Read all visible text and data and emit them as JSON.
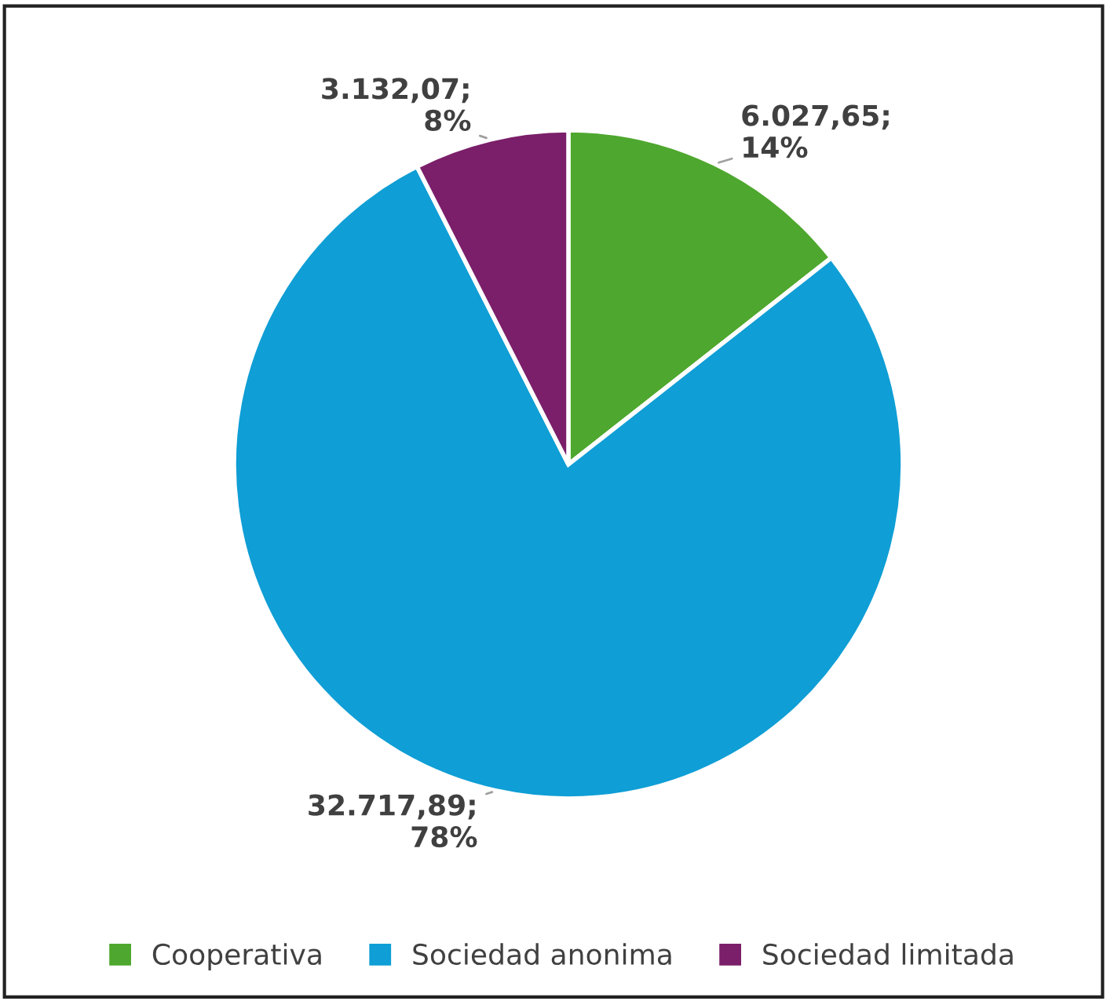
{
  "chart_data": {
    "type": "pie",
    "categories": [
      "Cooperativa",
      "Sociedad anonima",
      "Sociedad limitada"
    ],
    "values": [
      6027.65,
      32717.89,
      3132.07
    ],
    "colors": [
      "#4ea72e",
      "#0f9ed5",
      "#7b1f6a"
    ],
    "value_labels": [
      "6.027,65;\n14%",
      "32.717,89;\n78%",
      "3.132,07;\n8%"
    ],
    "legend": "bottom"
  }
}
